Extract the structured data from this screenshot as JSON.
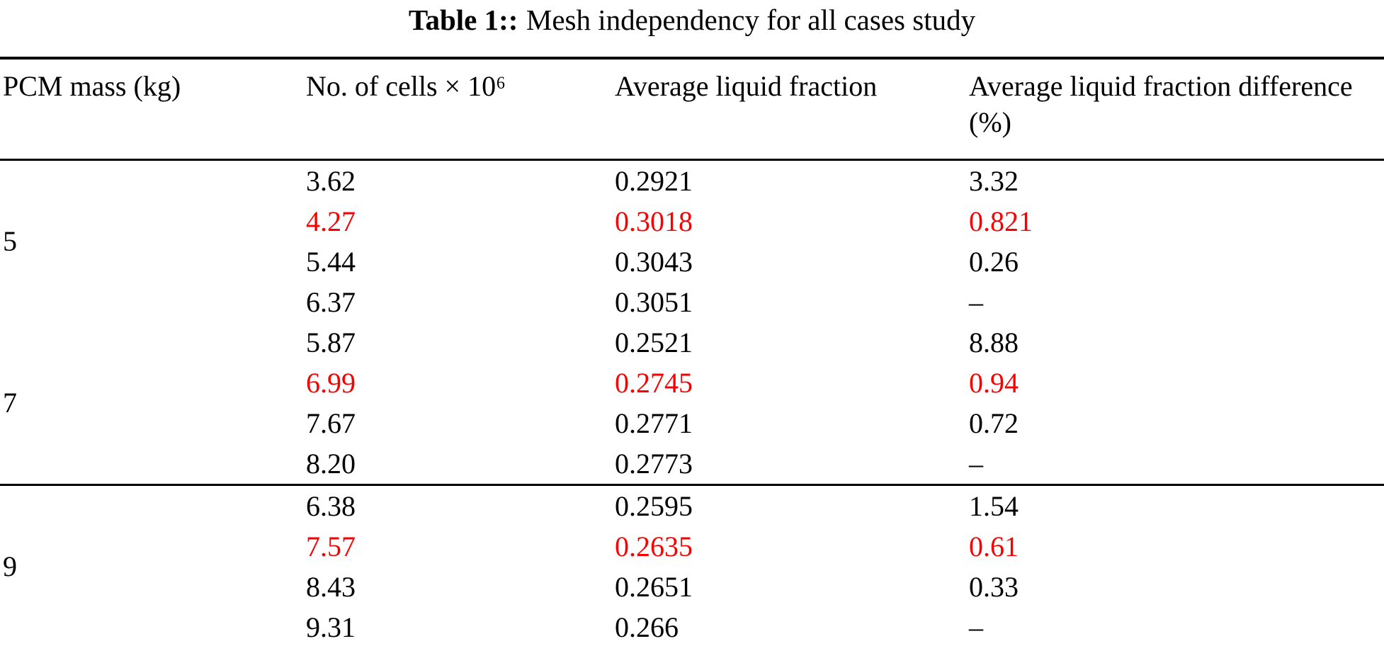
{
  "caption": {
    "label": "Table 1::",
    "text": "Mesh independency for all cases study"
  },
  "colors": {
    "highlight_red": "#fa0000",
    "text": "#000000",
    "rule": "#000000",
    "background": "#ffffff"
  },
  "table": {
    "columns": [
      "PCM mass (kg)",
      "No. of cells × 10⁶",
      "Average liquid fraction",
      "Average liquid fraction difference (%)"
    ],
    "groups": [
      {
        "mass": "5",
        "rule_above": false,
        "rows": [
          {
            "cells": "3.62",
            "liquid_fraction": "0.2921",
            "difference": "3.32",
            "highlight": false
          },
          {
            "cells": "4.27",
            "liquid_fraction": "0.3018",
            "difference": "0.821",
            "highlight": true
          },
          {
            "cells": "5.44",
            "liquid_fraction": "0.3043",
            "difference": "0.26",
            "highlight": false
          },
          {
            "cells": "6.37",
            "liquid_fraction": "0.3051",
            "difference": "–",
            "highlight": false
          }
        ]
      },
      {
        "mass": "7",
        "rule_above": false,
        "rows": [
          {
            "cells": "5.87",
            "liquid_fraction": "0.2521",
            "difference": "8.88",
            "highlight": false
          },
          {
            "cells": "6.99",
            "liquid_fraction": "0.2745",
            "difference": "0.94",
            "highlight": true
          },
          {
            "cells": "7.67",
            "liquid_fraction": "0.2771",
            "difference": "0.72",
            "highlight": false
          },
          {
            "cells": "8.20",
            "liquid_fraction": "0.2773",
            "difference": "–",
            "highlight": false
          }
        ]
      },
      {
        "mass": "9",
        "rule_above": true,
        "rows": [
          {
            "cells": "6.38",
            "liquid_fraction": "0.2595",
            "difference": "1.54",
            "highlight": false
          },
          {
            "cells": "7.57",
            "liquid_fraction": "0.2635",
            "difference": "0.61",
            "highlight": true
          },
          {
            "cells": "8.43",
            "liquid_fraction": "0.2651",
            "difference": "0.33",
            "highlight": false
          },
          {
            "cells": "9.31",
            "liquid_fraction": "0.266",
            "difference": "–",
            "highlight": false
          }
        ]
      }
    ]
  }
}
